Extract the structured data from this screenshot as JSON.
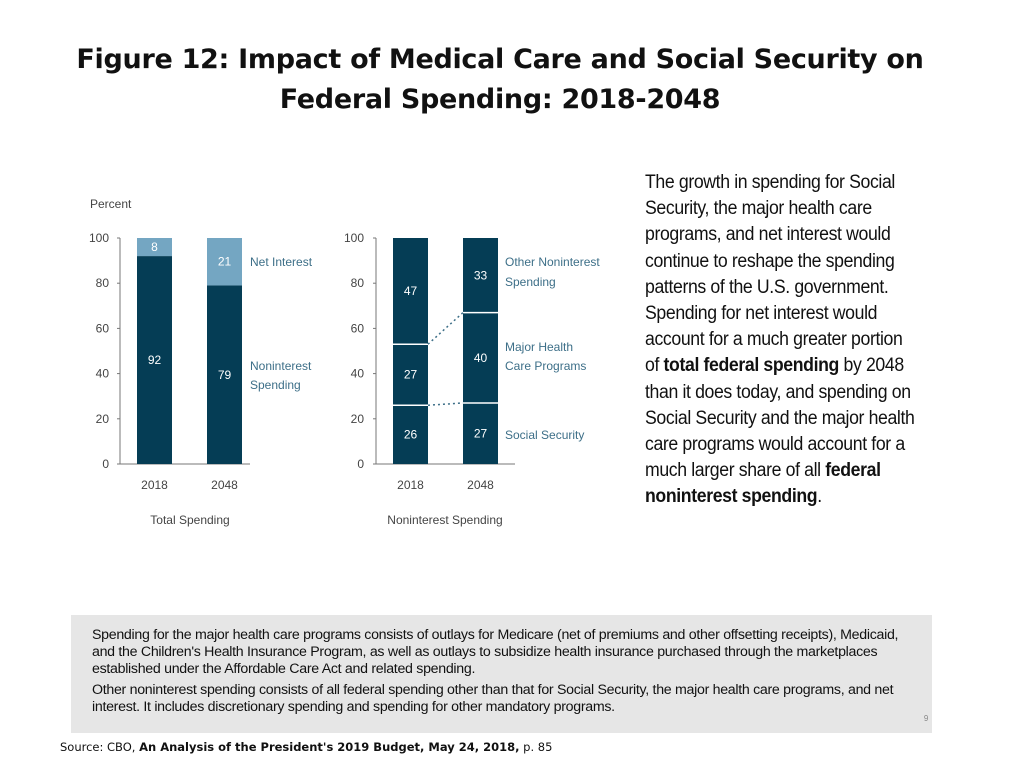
{
  "title": {
    "line1": "Figure 12: Impact of Medical Care and Social Security on",
    "line2": "Federal Spending: 2018-2048"
  },
  "colors": {
    "dark": "#053d55",
    "light": "#74a6c2",
    "axis": "#777777",
    "label": "#3d6f88",
    "text": "#444444"
  },
  "chart_data": [
    {
      "type": "bar",
      "stacked": true,
      "title": "Total Spending",
      "ylabel": "Percent",
      "ylim": [
        0,
        100
      ],
      "yticks": [
        "0",
        "20",
        "40",
        "60",
        "80",
        "100"
      ],
      "categories": [
        "2018",
        "2048"
      ],
      "series": [
        {
          "name": "Noninterest Spending",
          "values": [
            92,
            79
          ]
        },
        {
          "name": "Net Interest",
          "values": [
            8,
            21
          ]
        }
      ],
      "legend": [
        "Net Interest",
        "Noninterest Spending"
      ]
    },
    {
      "type": "bar",
      "stacked": true,
      "title": "Noninterest Spending",
      "ylim": [
        0,
        100
      ],
      "yticks": [
        "0",
        "20",
        "40",
        "60",
        "80",
        "100"
      ],
      "categories": [
        "2018",
        "2048"
      ],
      "series": [
        {
          "name": "Social Security",
          "values": [
            26,
            27
          ]
        },
        {
          "name": "Major Health Care Programs",
          "values": [
            27,
            40
          ]
        },
        {
          "name": "Other Noninterest Spending",
          "values": [
            47,
            33
          ]
        }
      ],
      "legend": [
        "Other Noninterest Spending",
        "Major Health Care Programs",
        "Social Security"
      ]
    }
  ],
  "sidebar": {
    "p1": "The growth in spending for Social Security, the major health care programs, and net interest would continue to reshape the spending patterns of the U.S. government. Spending for net interest would account for a much greater portion of",
    "b1": "total federal spending",
    "p2": " by 2048 than it does today, and spending on Social Security and the major health care programs would account for a much larger share of all ",
    "b2": "federal noninterest spending",
    "p3": "."
  },
  "notes": {
    "n1": "Spending for the major health care programs consists of outlays for Medicare (net of premiums and other offsetting receipts), Medicaid, and the Children's Health Insurance Program, as well as outlays to subsidize health insurance purchased through the marketplaces established under the Affordable Care Act and related spending.",
    "n2": "Other noninterest spending consists of all federal spending other than that for Social Security, the major health care programs, and net interest. It includes discretionary spending and spending for other mandatory programs.",
    "page": "9"
  },
  "source": {
    "prefix": "Source: CBO, ",
    "title": "An Analysis of the President's 2019 Budget, May 24, 2018,",
    "suffix": " p. 85"
  }
}
